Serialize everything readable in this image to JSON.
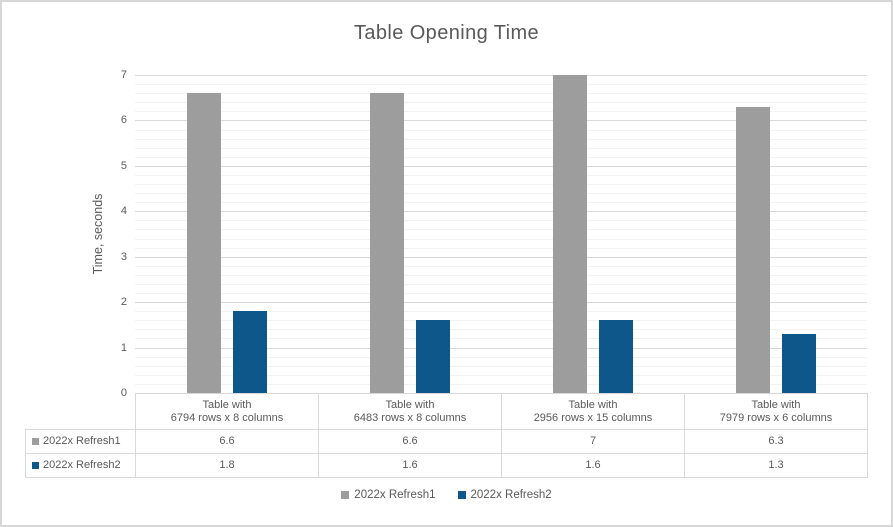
{
  "chart_data": {
    "type": "bar",
    "title": "Table Opening Time",
    "ylabel": "Time, seconds",
    "xlabel": "",
    "ylim": [
      0,
      7
    ],
    "y_tick_labels": [
      "0",
      "1",
      "2",
      "3",
      "4",
      "5",
      "6",
      "7"
    ],
    "y_major_step": 1,
    "y_minor_step": 0.2,
    "grid": "horizontal major and minor gridlines",
    "legend_position": "bottom",
    "show_data_table": true,
    "categories": [
      "Table with 6794 rows x 8 columns",
      "Table with 6483 rows x 8 columns",
      "Table with 2956 rows x 15 columns",
      "Table with 7979 rows x 6 columns"
    ],
    "categories_display": [
      {
        "line1": "Table with",
        "line2": "6794 rows x 8 columns"
      },
      {
        "line1": "Table with",
        "line2": "6483 rows x 8 columns"
      },
      {
        "line1": "Table with",
        "line2": "2956 rows x 15 columns"
      },
      {
        "line1": "Table with",
        "line2": "7979 rows x 6 columns"
      }
    ],
    "series": [
      {
        "name": "2022x Refresh1",
        "color": "#9d9d9d",
        "values": [
          6.6,
          6.6,
          7,
          6.3
        ],
        "display_values": [
          "6.6",
          "6.6",
          "7",
          "6.3"
        ]
      },
      {
        "name": "2022x Refresh2",
        "color": "#0d578a",
        "values": [
          1.8,
          1.6,
          1.6,
          1.3
        ],
        "display_values": [
          "1.8",
          "1.6",
          "1.6",
          "1.3"
        ]
      }
    ]
  },
  "colors": {
    "text": "#595959",
    "major_gridline": "#d9d9d9",
    "minor_gridline": "#f2f2f2",
    "table_border": "#d9d9d9",
    "canvas_border": "#d7d7d7",
    "background": "#ffffff"
  }
}
